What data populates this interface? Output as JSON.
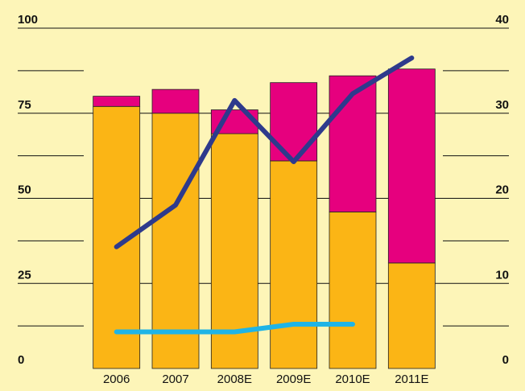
{
  "chart_data": {
    "type": "bar",
    "categories": [
      "2006",
      "2007",
      "2008E",
      "2009E",
      "2010E",
      "2011E"
    ],
    "series": [
      {
        "color": "#fbb515",
        "values": [
          77,
          75,
          69,
          61,
          46,
          31
        ]
      },
      {
        "color": "#e6007e",
        "values": [
          3,
          7,
          7,
          23,
          40,
          57
        ]
      },
      {
        "color": "#2e3a8c",
        "axis": "y2",
        "type": "line",
        "values": [
          14.3,
          19.2,
          31.5,
          24.3,
          32.3,
          36.5
        ]
      },
      {
        "color": "#1fb4e6",
        "axis": "y2",
        "type": "line",
        "values": [
          4.3,
          4.3,
          4.3,
          5.2,
          5.2,
          null
        ]
      }
    ],
    "stacked": true,
    "ylim": [
      0,
      100
    ],
    "yticks": [
      0,
      25,
      50,
      75,
      100
    ],
    "minor_yticks": [
      12.5,
      37.5,
      62.5,
      87.5
    ],
    "y2lim": [
      0,
      40
    ],
    "y2ticks": [
      0,
      10,
      20,
      30,
      40
    ]
  }
}
